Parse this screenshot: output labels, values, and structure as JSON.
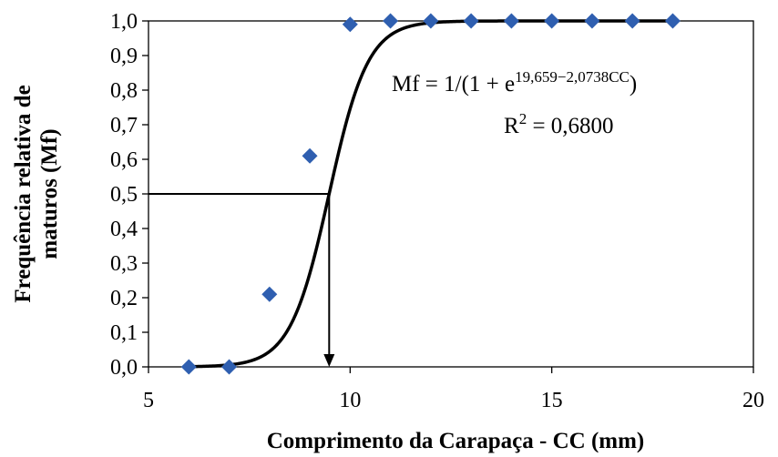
{
  "chart_data": {
    "type": "scatter",
    "title": "",
    "xlabel": "Comprimento da Carapaça - CC (mm)",
    "ylabel_line1": "Frequência relativa de",
    "ylabel_line2": "maturos (Mf)",
    "xlim": [
      5,
      20
    ],
    "ylim": [
      0,
      1
    ],
    "x_ticks": [
      5,
      10,
      15,
      20
    ],
    "x_tick_labels": [
      "5",
      "10",
      "15",
      "20"
    ],
    "y_ticks": [
      0,
      0.1,
      0.2,
      0.3,
      0.4,
      0.5,
      0.6,
      0.7,
      0.8,
      0.9,
      1.0
    ],
    "y_tick_labels": [
      "0,0",
      "0,1",
      "0,2",
      "0,3",
      "0,4",
      "0,5",
      "0,6",
      "0,7",
      "0,8",
      "0,9",
      "1,0"
    ],
    "grid": false,
    "legend": "none",
    "points": {
      "x": [
        6,
        7,
        8,
        9,
        10,
        11,
        12,
        13,
        14,
        15,
        16,
        17,
        18
      ],
      "y": [
        0.0,
        0.0,
        0.21,
        0.61,
        0.99,
        1.0,
        1.0,
        1.0,
        1.0,
        1.0,
        1.0,
        1.0,
        1.0
      ],
      "color": "#2f5fb0",
      "marker": "diamond"
    },
    "fit_curve": {
      "a": 19.659,
      "b": 2.0738,
      "x_range": [
        6,
        18
      ],
      "color": "#000000"
    },
    "l50": {
      "x": 9.48,
      "y": 0.5
    },
    "equation": {
      "prefix": "Mf = 1/(1 + e",
      "exponent": "19,659−2,0738CC",
      "suffix": ")"
    },
    "r2": {
      "prefix": "R",
      "sup": "2",
      "suffix": " = 0,6800"
    }
  }
}
